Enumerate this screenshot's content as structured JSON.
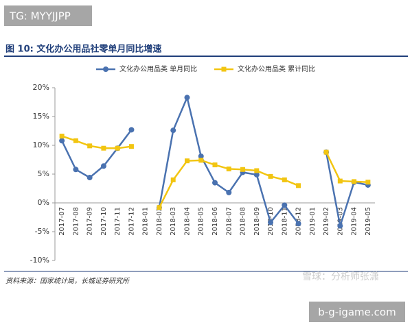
{
  "tag": "TG: MYYJJPP",
  "chart_data": {
    "type": "line",
    "title": "图 10: 文化办公用品社零单月同比增速",
    "categories": [
      "2017-07",
      "2017-08",
      "2017-09",
      "2017-10",
      "2017-11",
      "2017-12",
      "2018-01",
      "2018-02",
      "2018-03",
      "2018-04",
      "2018-05",
      "2018-06",
      "2018-07",
      "2018-08",
      "2018-09",
      "2018-10",
      "2018-11",
      "2018-12",
      "2019-01",
      "2019-02",
      "2019-03",
      "2019-04",
      "2019-05"
    ],
    "series": [
      {
        "name": "文化办公用品类 单月同比",
        "color": "#4a72b0",
        "values": [
          10.8,
          5.8,
          4.4,
          6.4,
          9.5,
          12.7,
          null,
          -0.8,
          12.6,
          18.3,
          8.1,
          3.5,
          1.8,
          5.3,
          4.9,
          -3.4,
          -0.4,
          -3.6,
          null,
          8.8,
          -4.0,
          3.6,
          3.1
        ]
      },
      {
        "name": "文化办公用品类 累计同比",
        "color": "#f2c511",
        "values": [
          11.6,
          10.8,
          9.9,
          9.5,
          9.5,
          9.8,
          null,
          -0.8,
          4.0,
          7.3,
          7.4,
          6.6,
          5.9,
          5.8,
          5.6,
          4.6,
          4.0,
          3.0,
          null,
          8.8,
          3.8,
          3.7,
          3.6
        ]
      }
    ],
    "ylim": [
      -10,
      20
    ],
    "yticks": [
      {
        "value": -10,
        "label": "-10%"
      },
      {
        "value": -5,
        "label": "-5%"
      },
      {
        "value": 0,
        "label": "0%"
      },
      {
        "value": 5,
        "label": "5%"
      },
      {
        "value": 10,
        "label": "10%"
      },
      {
        "value": 15,
        "label": "15%"
      },
      {
        "value": 20,
        "label": "20%"
      }
    ],
    "legend": "top",
    "source": "资料来源：国家统计局，长城证券研究所"
  },
  "watermark": "雪球：分析师张潇",
  "badge": "b-g-igame.com"
}
